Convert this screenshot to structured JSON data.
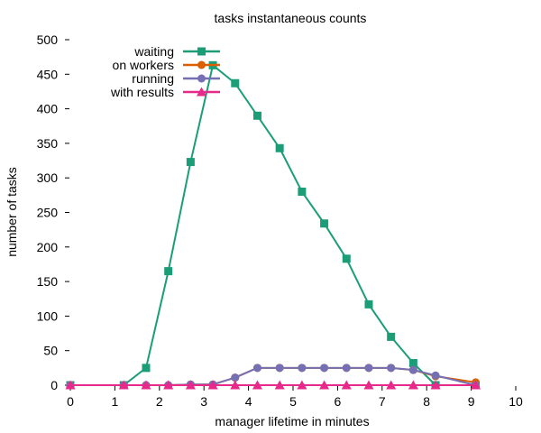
{
  "chart_data": {
    "type": "line",
    "title": "tasks instantaneous counts",
    "xlabel": "manager lifetime in minutes",
    "ylabel": "number of tasks",
    "xlim": [
      0,
      10
    ],
    "ylim": [
      0,
      500
    ],
    "xticks": [
      0,
      1,
      2,
      3,
      4,
      5,
      6,
      7,
      8,
      9,
      10
    ],
    "yticks": [
      0,
      50,
      100,
      150,
      200,
      250,
      300,
      350,
      400,
      450,
      500
    ],
    "grid": false,
    "legend_position": "top-left",
    "series": [
      {
        "name": "waiting",
        "color": "#1b9e77",
        "marker": "square",
        "x": [
          0,
          1.2,
          1.7,
          2.2,
          2.7,
          3.2,
          3.7,
          4.2,
          4.7,
          5.2,
          5.7,
          6.2,
          6.7,
          7.2,
          7.7,
          8.2,
          9.1
        ],
        "y": [
          0,
          0,
          25,
          165,
          323,
          463,
          437,
          390,
          343,
          280,
          234,
          183,
          117,
          70,
          32,
          0,
          0
        ]
      },
      {
        "name": "on workers",
        "color": "#d95f02",
        "marker": "circle",
        "x": [
          0,
          1.2,
          1.7,
          2.2,
          2.7,
          3.2,
          3.7,
          4.2,
          4.7,
          5.2,
          5.7,
          6.2,
          6.7,
          7.2,
          7.7,
          8.2,
          9.1
        ],
        "y": [
          0,
          0,
          0,
          0,
          1,
          1,
          11,
          25,
          25,
          25,
          25,
          25,
          25,
          25,
          22,
          13,
          4
        ]
      },
      {
        "name": "running",
        "color": "#7570b3",
        "marker": "circle",
        "x": [
          0,
          1.2,
          1.7,
          2.2,
          2.7,
          3.2,
          3.7,
          4.2,
          4.7,
          5.2,
          5.7,
          6.2,
          6.7,
          7.2,
          7.7,
          8.2,
          9.1
        ],
        "y": [
          0,
          0,
          0,
          0,
          1,
          1,
          11,
          25,
          25,
          25,
          25,
          25,
          25,
          25,
          22,
          14,
          0
        ]
      },
      {
        "name": "with results",
        "color": "#e7298a",
        "marker": "triangle",
        "x": [
          0,
          1.2,
          1.7,
          2.2,
          2.7,
          3.2,
          3.7,
          4.2,
          4.7,
          5.2,
          5.7,
          6.2,
          6.7,
          7.2,
          7.7,
          8.2,
          9.1
        ],
        "y": [
          0,
          0,
          0,
          0,
          0,
          0,
          0,
          0,
          0,
          0,
          0,
          0,
          0,
          0,
          0,
          0,
          0
        ]
      }
    ]
  }
}
